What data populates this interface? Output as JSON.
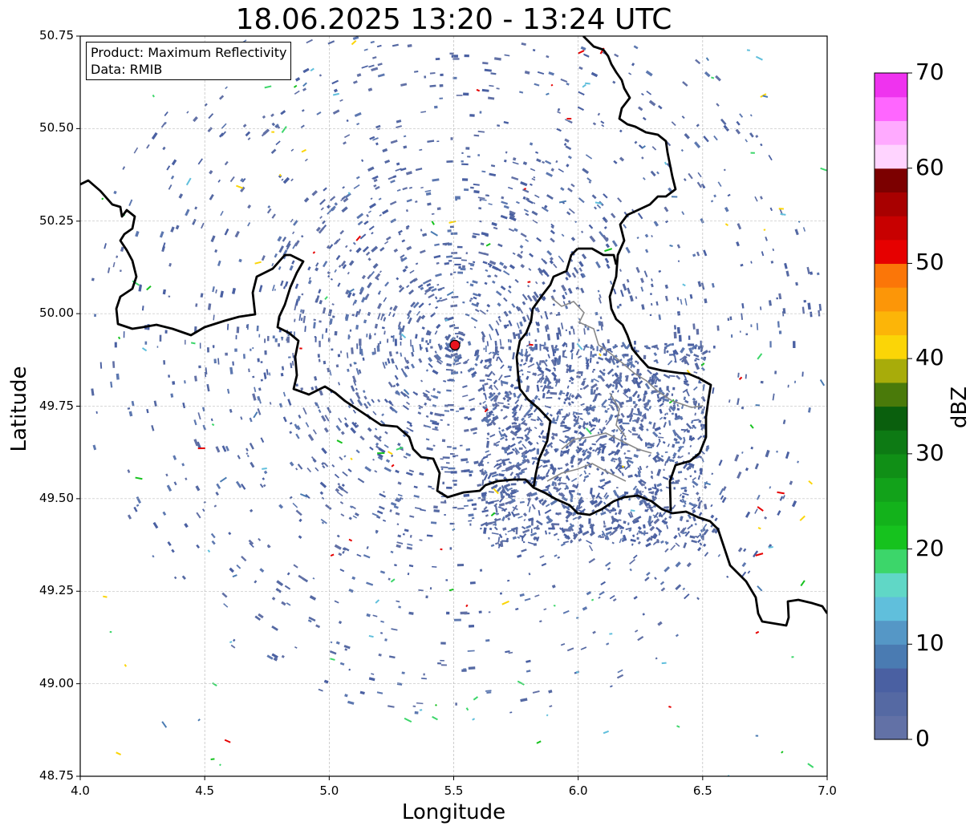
{
  "title": "18.06.2025 13:20 - 13:24 UTC",
  "info_box": {
    "product_line": "Product: Maximum Reflectivity",
    "data_line": "Data: RMIB"
  },
  "axes": {
    "xlabel": "Longitude",
    "ylabel": "Latitude",
    "xlim": [
      4.0,
      7.0
    ],
    "ylim": [
      48.75,
      50.75
    ],
    "xticks": [
      "4.0",
      "4.5",
      "5.0",
      "5.5",
      "6.0",
      "6.5",
      "7.0"
    ],
    "yticks": [
      "48.75",
      "49.00",
      "49.25",
      "49.50",
      "49.75",
      "50.00",
      "50.25",
      "50.50",
      "50.75"
    ],
    "grid": true
  },
  "radar_site": {
    "lon": 5.505,
    "lat": 49.915,
    "color": "#e8141e"
  },
  "colorbar": {
    "label": "dBZ",
    "ticks": [
      "0",
      "10",
      "20",
      "30",
      "40",
      "50",
      "60",
      "70"
    ],
    "range": [
      0,
      70
    ],
    "colors": [
      "#6271a6",
      "#5569a3",
      "#4a60a2",
      "#4a7bb2",
      "#5597c6",
      "#60bfdc",
      "#60d7c6",
      "#3cd66a",
      "#16c21e",
      "#13b21b",
      "#12a21a",
      "#108f16",
      "#0d7a14",
      "#0a5f0d",
      "#4a7a0a",
      "#a8ac0a",
      "#fbd507",
      "#fcb508",
      "#fc9608",
      "#fb7608",
      "#e60000",
      "#c80000",
      "#a80000",
      "#7c0000",
      "#ffd4ff",
      "#ffaaff",
      "#ff66ff",
      "#ef33ef"
    ]
  },
  "borders": {
    "national_color": "#000000",
    "regional_color": "#888888"
  }
}
